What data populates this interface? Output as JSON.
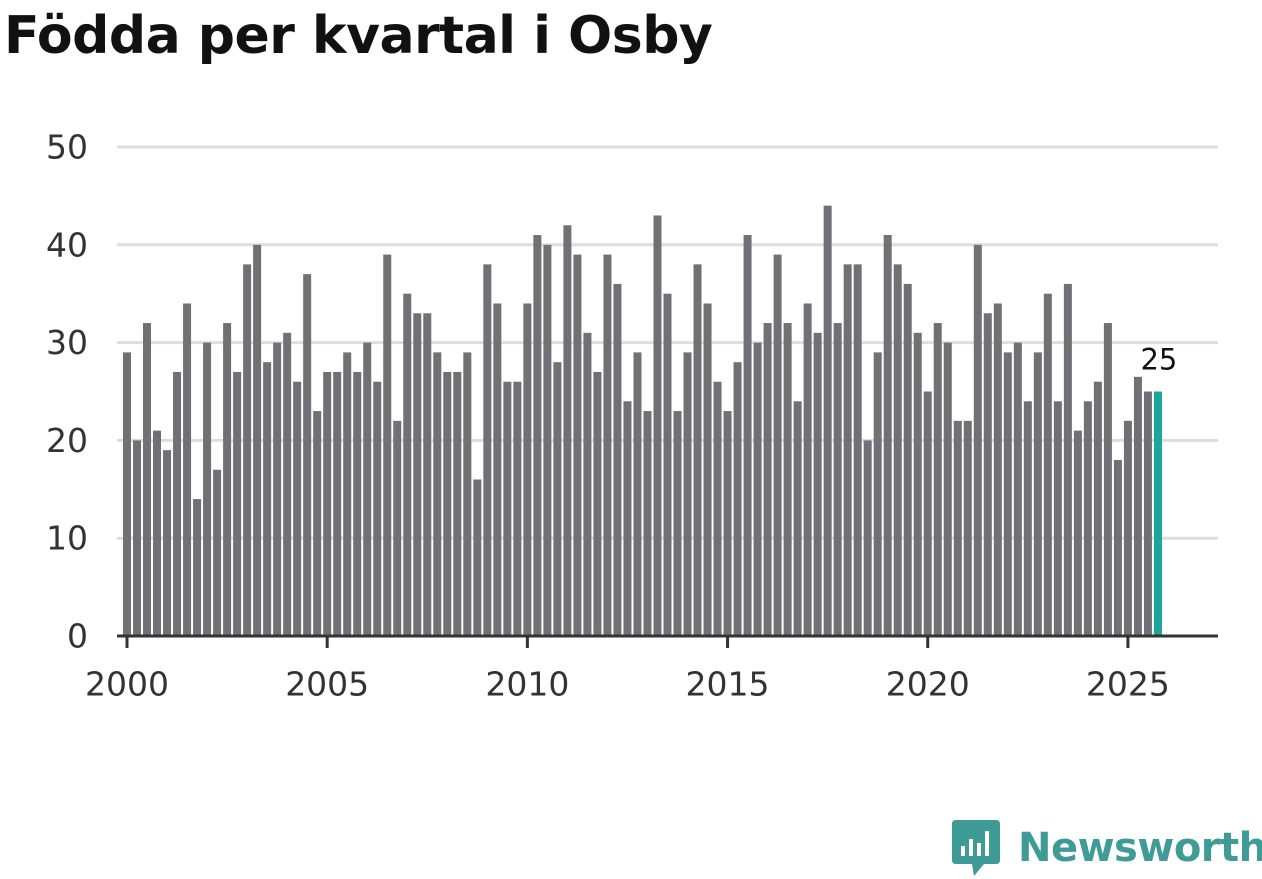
{
  "title": "Födda per kvartal i Osby",
  "brand": {
    "name": "Newsworthy",
    "color": "#3e9b96"
  },
  "colors": {
    "bar": "#717075",
    "highlight": "#1da59a",
    "grid": "#dedede",
    "axis": "#333333",
    "tick_text": "#333333"
  },
  "chart_data": {
    "type": "bar",
    "title": "Födda per kvartal i Osby",
    "xlabel": "",
    "ylabel": "",
    "x_start_year": 2000,
    "periods_per_year": 4,
    "xlim": [
      1999.75,
      2027.25
    ],
    "ylim": [
      0,
      50
    ],
    "yticks": [
      0,
      10,
      20,
      30,
      40,
      50
    ],
    "xticks": [
      2000,
      2005,
      2010,
      2015,
      2020,
      2025
    ],
    "grid": true,
    "values": [
      29,
      20,
      32,
      21,
      19,
      27,
      34,
      14,
      30,
      17,
      32,
      27,
      38,
      40,
      28,
      30,
      31,
      26,
      37,
      23,
      27,
      27,
      29,
      27,
      30,
      26,
      39,
      22,
      35,
      33,
      33,
      29,
      27,
      27,
      29,
      16,
      38,
      34,
      26,
      26,
      34,
      41,
      40,
      28,
      42,
      39,
      31,
      27,
      39,
      36,
      24,
      29,
      23,
      43,
      35,
      23,
      29,
      38,
      34,
      26,
      23,
      28,
      41,
      30,
      32,
      39,
      32,
      24,
      34,
      31,
      44,
      32,
      38,
      38,
      20,
      29,
      41,
      38,
      36,
      31,
      25,
      32,
      30,
      22,
      22,
      40,
      33,
      34,
      29,
      30,
      24,
      29,
      35,
      24,
      36,
      21,
      24,
      26,
      32,
      18,
      22,
      26.5,
      25,
      25
    ],
    "highlight_index": 103,
    "annotation": {
      "text": "25",
      "index": 103
    }
  }
}
